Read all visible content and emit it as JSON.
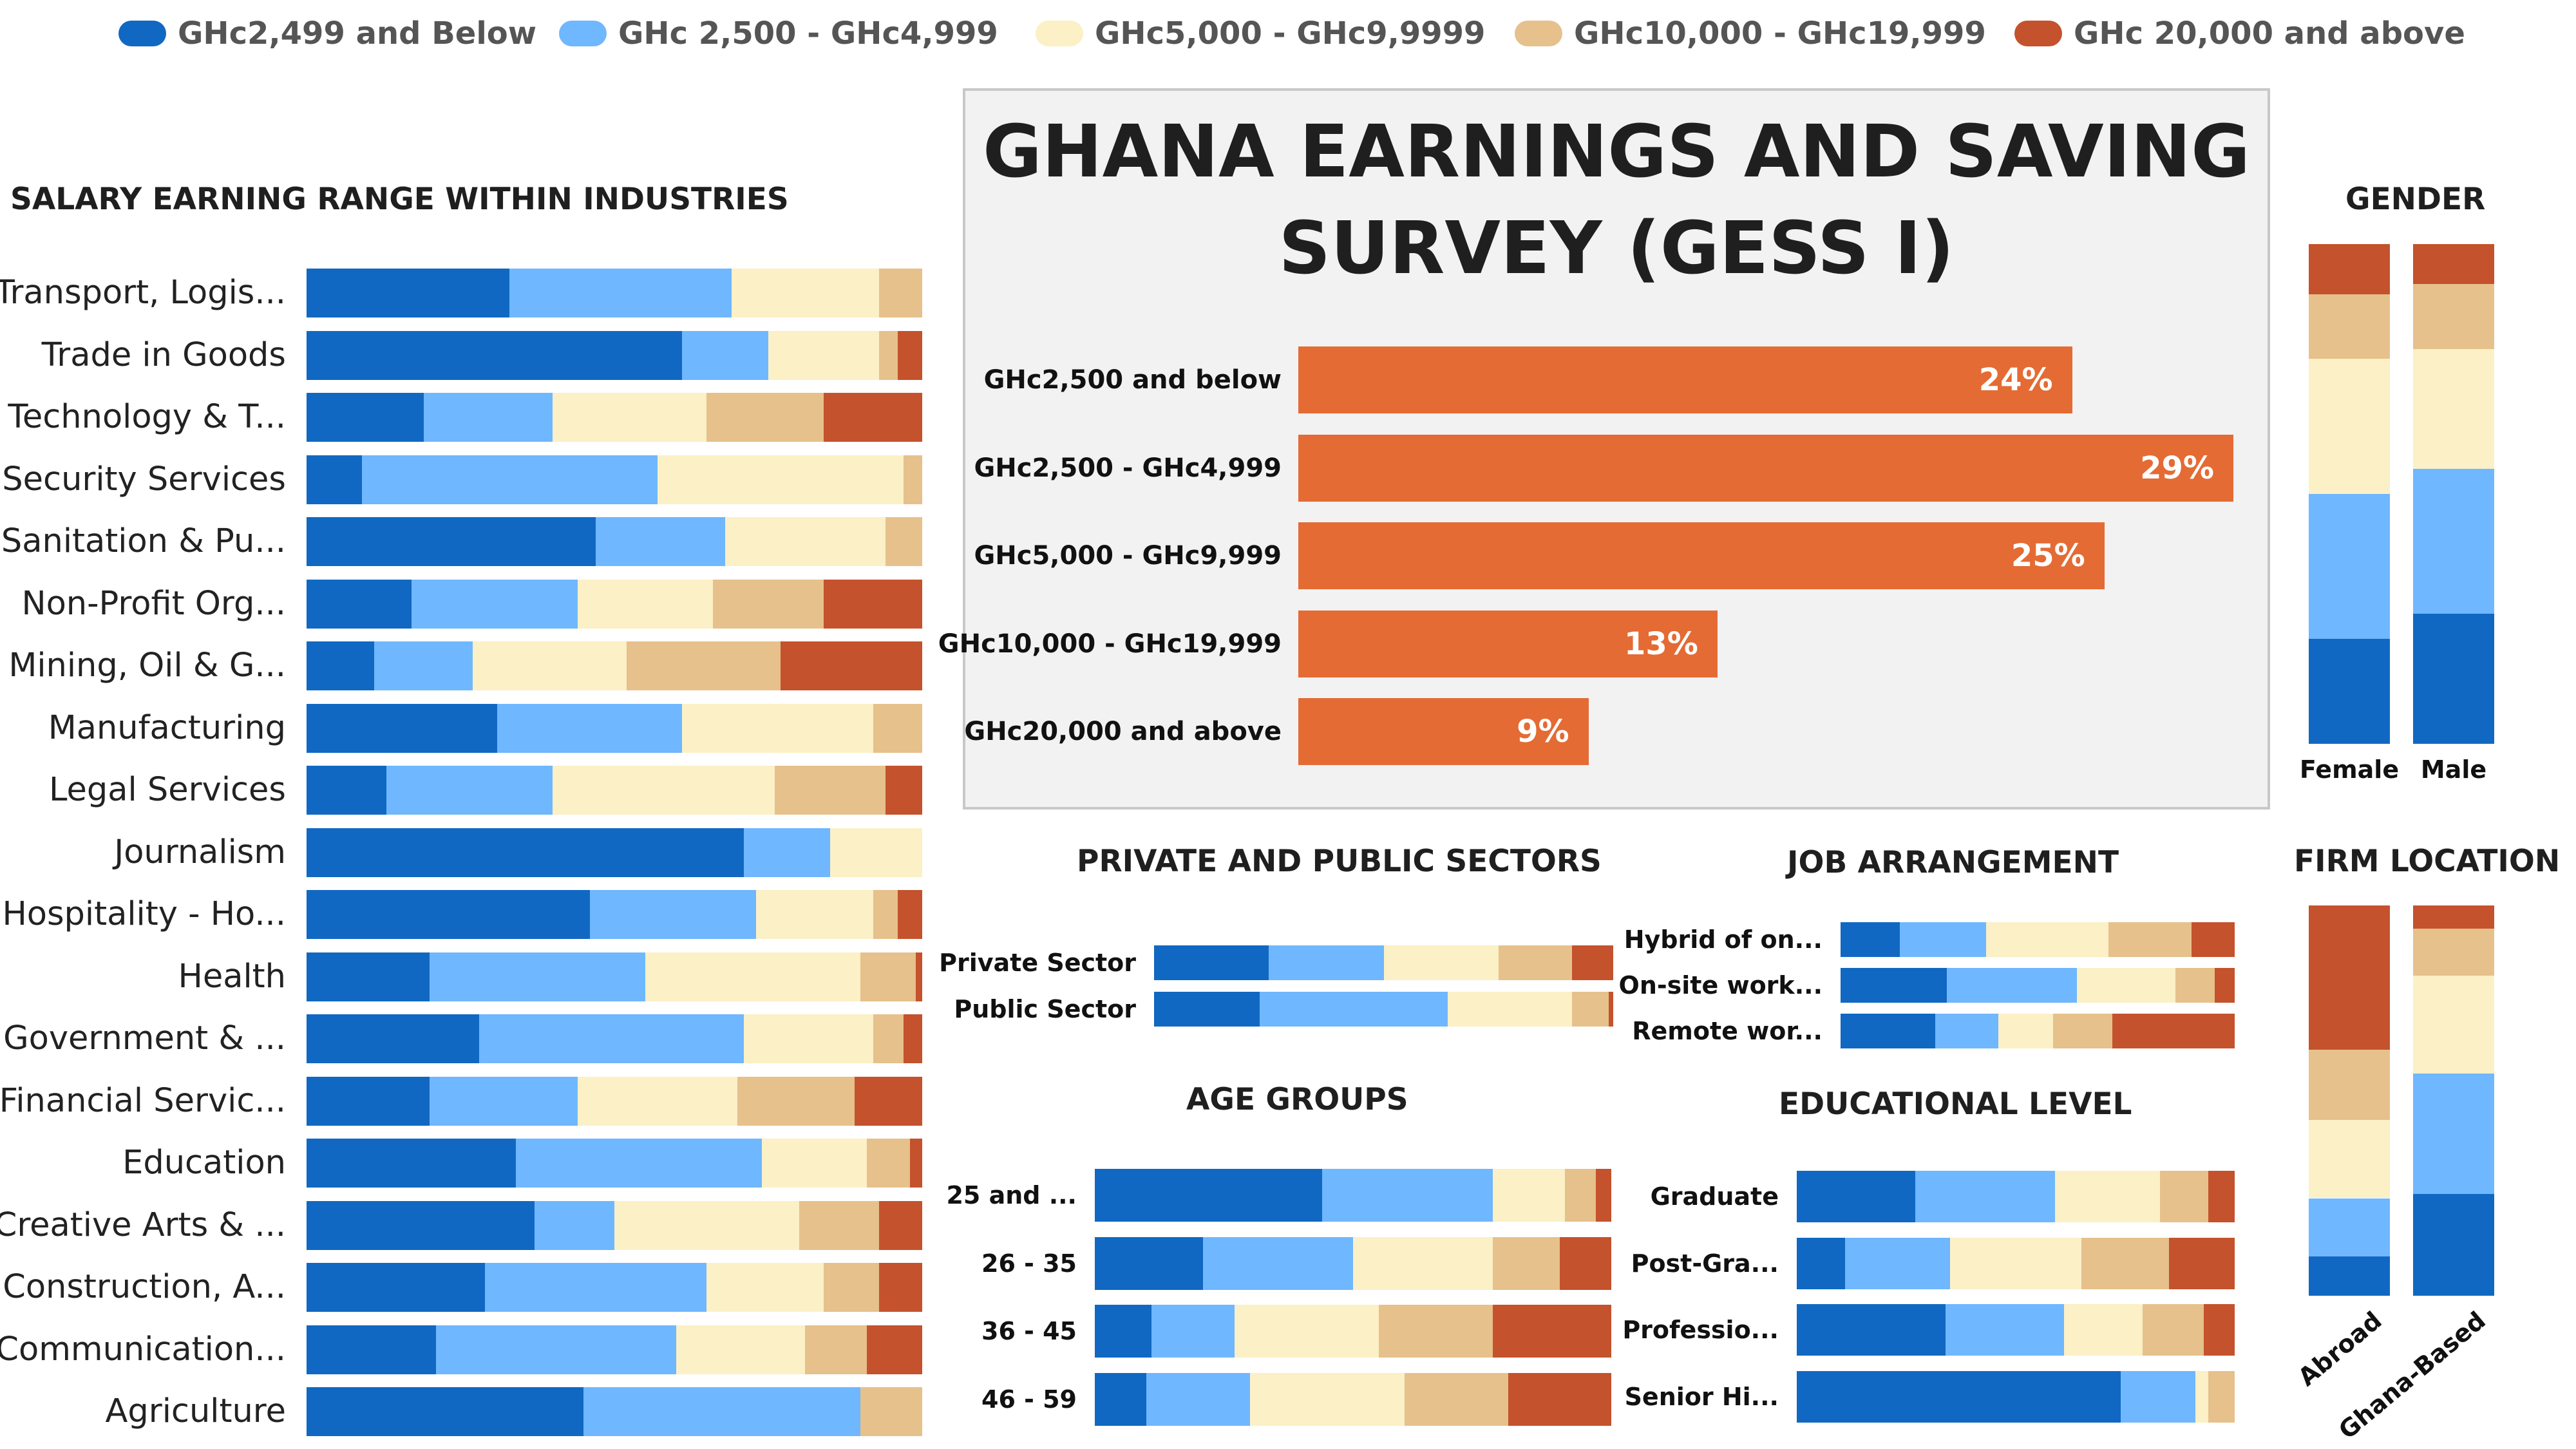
{
  "colors": {
    "c1": "#1068c2",
    "c2": "#6fb7ff",
    "c3": "#fbf0c6",
    "c4": "#e6c18c",
    "c5": "#c4522d",
    "dist": "#e46b34"
  },
  "legend": [
    {
      "label": "GHc2,499 and Below",
      "color": "#1068c2"
    },
    {
      "label": "GHc 2,500 - GHc4,999",
      "color": "#6fb7ff"
    },
    {
      "label": "GHc5,000 - GHc9,9999",
      "color": "#fbf0c6"
    },
    {
      "label": "GHc10,000 - GHc19,999",
      "color": "#e6c18c"
    },
    {
      "label": "GHc 20,000 and above",
      "color": "#c4522d"
    }
  ],
  "title": {
    "line1": "GHANA EARNINGS AND SAVING",
    "line2": "SURVEY (GESS I)"
  },
  "sections": {
    "industries": "SALARY EARNING RANGE WITHIN INDUSTRIES",
    "gender": "GENDER",
    "sectors": "PRIVATE AND PUBLIC SECTORS",
    "job": "JOB ARRANGEMENT",
    "firm": "FIRM LOCATION",
    "age": "AGE GROUPS",
    "edu": "EDUCATIONAL LEVEL"
  },
  "chart_data": [
    {
      "id": "distribution",
      "type": "bar",
      "orientation": "horizontal",
      "categories": [
        "GHc2,500 and below",
        "GHc2,500 - GHc4,999",
        "GHc5,000 - GHc9,999",
        "GHc10,000 - GHc19,999",
        "GHc20,000 and above"
      ],
      "values": [
        24,
        29,
        25,
        13,
        9
      ],
      "value_labels": [
        "24%",
        "29%",
        "25%",
        "13%",
        "9%"
      ],
      "xlim": [
        0,
        29
      ]
    },
    {
      "id": "industries",
      "type": "bar",
      "stacked": "percent",
      "orientation": "horizontal",
      "title": "SALARY EARNING RANGE WITHIN INDUSTRIES",
      "categories": [
        "Transport, Logis...",
        "Trade in Goods",
        "Technology & T...",
        "Security Services",
        "Sanitation & Pu...",
        "Non-Profit Org...",
        "Mining, Oil & G...",
        "Manufacturing",
        "Legal Services",
        "Journalism",
        "Hospitality - Ho...",
        "Health",
        "Government & ...",
        "Financial Servic...",
        "Education",
        "Creative Arts & ...",
        "Construction, A...",
        "Communication...",
        "Agriculture"
      ],
      "rows": [
        [
          33,
          36,
          24,
          7,
          0
        ],
        [
          61,
          14,
          18,
          3,
          4
        ],
        [
          19,
          21,
          25,
          19,
          16
        ],
        [
          9,
          48,
          40,
          3,
          0
        ],
        [
          47,
          21,
          26,
          6,
          0
        ],
        [
          17,
          27,
          22,
          18,
          16
        ],
        [
          11,
          16,
          25,
          25,
          23
        ],
        [
          31,
          30,
          31,
          8,
          0
        ],
        [
          13,
          27,
          36,
          18,
          6
        ],
        [
          71,
          14,
          15,
          0,
          0
        ],
        [
          46,
          27,
          19,
          4,
          4
        ],
        [
          20,
          35,
          35,
          9,
          1
        ],
        [
          28,
          43,
          21,
          5,
          3
        ],
        [
          20,
          24,
          26,
          19,
          11
        ],
        [
          34,
          40,
          17,
          7,
          2
        ],
        [
          37,
          13,
          30,
          13,
          7
        ],
        [
          29,
          36,
          19,
          9,
          7
        ],
        [
          21,
          39,
          21,
          10,
          9
        ],
        [
          45,
          45,
          0,
          10,
          0
        ]
      ]
    },
    {
      "id": "gender",
      "type": "bar",
      "stacked": "percent",
      "orientation": "vertical",
      "title": "GENDER",
      "categories": [
        "Female",
        "Male"
      ],
      "rows": [
        [
          21,
          29,
          27,
          13,
          10
        ],
        [
          26,
          29,
          24,
          13,
          8
        ]
      ]
    },
    {
      "id": "sectors",
      "type": "bar",
      "stacked": "percent",
      "orientation": "horizontal",
      "title": "PRIVATE AND PUBLIC SECTORS",
      "categories": [
        "Private Sector",
        "Public Sector"
      ],
      "rows": [
        [
          25,
          25,
          25,
          16,
          9
        ],
        [
          23,
          41,
          27,
          8,
          1
        ]
      ]
    },
    {
      "id": "job",
      "type": "bar",
      "stacked": "percent",
      "orientation": "horizontal",
      "title": "JOB ARRANGEMENT",
      "categories": [
        "Hybrid of on...",
        "On-site work...",
        "Remote wor..."
      ],
      "rows": [
        [
          15,
          22,
          31,
          21,
          11
        ],
        [
          27,
          33,
          25,
          10,
          5
        ],
        [
          24,
          16,
          14,
          15,
          31
        ]
      ]
    },
    {
      "id": "firm",
      "type": "bar",
      "stacked": "percent",
      "orientation": "vertical",
      "title": "FIRM LOCATION",
      "categories": [
        "Abroad",
        "Ghana-Based"
      ],
      "rows": [
        [
          10,
          15,
          20,
          18,
          37
        ],
        [
          26,
          31,
          25,
          12,
          6
        ]
      ]
    },
    {
      "id": "age",
      "type": "bar",
      "stacked": "percent",
      "orientation": "horizontal",
      "title": "AGE GROUPS",
      "categories": [
        "25 and ...",
        "26 - 35",
        "36 - 45",
        "46 - 59"
      ],
      "rows": [
        [
          44,
          33,
          14,
          6,
          3
        ],
        [
          21,
          29,
          27,
          13,
          10
        ],
        [
          11,
          16,
          28,
          22,
          23
        ],
        [
          10,
          20,
          30,
          20,
          20
        ]
      ]
    },
    {
      "id": "edu",
      "type": "bar",
      "stacked": "percent",
      "orientation": "horizontal",
      "title": "EDUCATIONAL LEVEL",
      "categories": [
        "Graduate",
        "Post-Gra...",
        "Professio...",
        "Senior Hi..."
      ],
      "rows": [
        [
          27,
          32,
          24,
          11,
          6
        ],
        [
          11,
          24,
          30,
          20,
          15
        ],
        [
          34,
          27,
          18,
          14,
          7
        ],
        [
          74,
          17,
          3,
          6,
          0
        ]
      ]
    }
  ]
}
